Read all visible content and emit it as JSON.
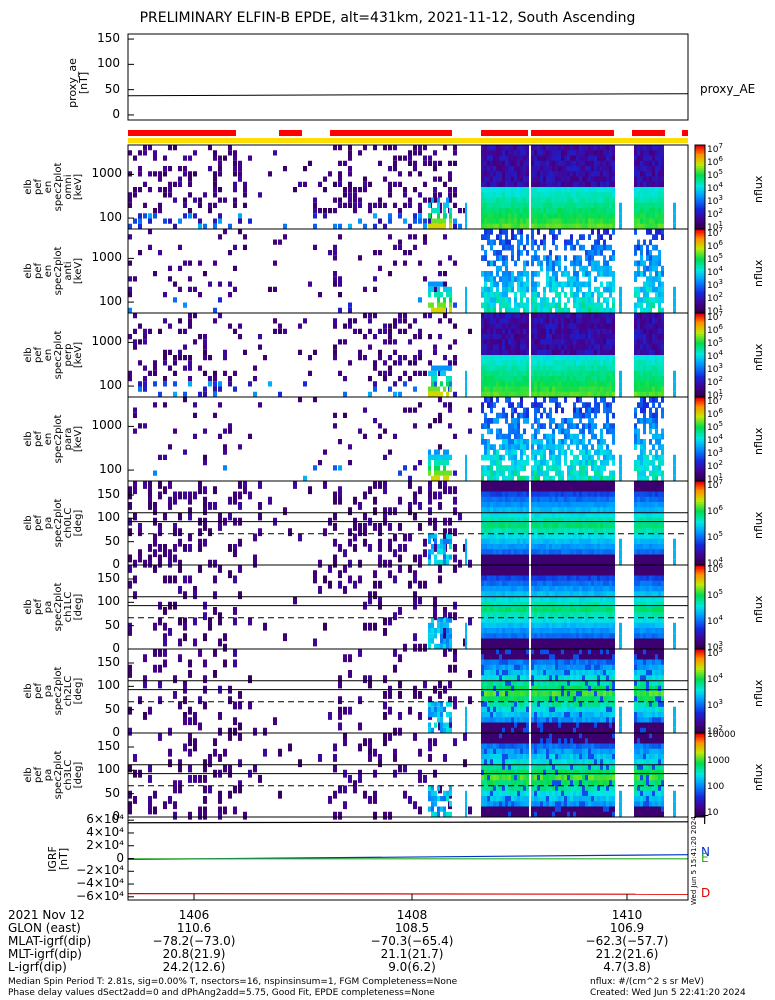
{
  "title": "PRELIMINARY ELFIN-B EPDE, alt=431km, 2021-11-12, South Ascending",
  "chart_data": [
    {
      "type": "line",
      "name": "proxy_ae",
      "ylabel": [
        "proxy_ae",
        "[nT]"
      ],
      "yticks": [
        "150",
        "100",
        "50",
        "0"
      ],
      "ylim": [
        -10,
        160
      ],
      "series": [
        {
          "name": "proxy_AE",
          "x": [
            0,
            1
          ],
          "y": [
            38,
            42
          ],
          "color": "#000000"
        }
      ]
    },
    {
      "type": "heatmap",
      "ylabel": [
        "elb",
        "pef",
        "en",
        "spec2plot",
        "omni",
        "[keV]"
      ],
      "yticks": [
        "1000",
        "100"
      ],
      "cb_label": "nflux",
      "cb_ticks": [
        "10",
        "10",
        "10",
        "10",
        "10",
        "10",
        "10"
      ],
      "cb_exps": [
        "7",
        "6",
        "5",
        "4",
        "3",
        "2",
        "1"
      ]
    },
    {
      "type": "heatmap",
      "ylabel": [
        "elb",
        "pef",
        "en",
        "spec2plot",
        "anti",
        "[keV]"
      ],
      "yticks": [
        "1000",
        "100"
      ],
      "cb_label": "nflux",
      "cb_ticks": [
        "10",
        "10",
        "10",
        "10",
        "10",
        "10",
        "10"
      ],
      "cb_exps": [
        "7",
        "6",
        "5",
        "4",
        "3",
        "2",
        "1"
      ]
    },
    {
      "type": "heatmap",
      "ylabel": [
        "elb",
        "pef",
        "en",
        "spec2plot",
        "perp",
        "[keV]"
      ],
      "yticks": [
        "1000",
        "100"
      ],
      "cb_label": "nflux",
      "cb_ticks": [
        "10",
        "10",
        "10",
        "10",
        "10",
        "10",
        "10"
      ],
      "cb_exps": [
        "7",
        "6",
        "5",
        "4",
        "3",
        "2",
        "1"
      ]
    },
    {
      "type": "heatmap",
      "ylabel": [
        "elb",
        "pef",
        "en",
        "spec2plot",
        "para",
        "[keV]"
      ],
      "yticks": [
        "1000",
        "100"
      ],
      "cb_label": "nflux",
      "cb_ticks": [
        "10",
        "10",
        "10",
        "10",
        "10",
        "10",
        "10"
      ],
      "cb_exps": [
        "7",
        "6",
        "5",
        "4",
        "3",
        "2",
        "1"
      ]
    },
    {
      "type": "heatmap",
      "ylabel": [
        "elb",
        "pef",
        "pa",
        "spec2plot",
        "ch0LC",
        "[deg]"
      ],
      "yticks": [
        "150",
        "100",
        "50",
        "0"
      ],
      "cb_label": "nflux",
      "cb_ticks": [
        "10",
        "10",
        "10",
        "10"
      ],
      "cb_exps": [
        "7",
        "6",
        "5",
        "4"
      ]
    },
    {
      "type": "heatmap",
      "ylabel": [
        "elb",
        "pef",
        "pa",
        "spec2plot",
        "ch1LC",
        "[deg]"
      ],
      "yticks": [
        "150",
        "100",
        "50",
        "0"
      ],
      "cb_label": "nflux",
      "cb_ticks": [
        "10",
        "10",
        "10",
        "10"
      ],
      "cb_exps": [
        "6",
        "5",
        "4",
        "3"
      ]
    },
    {
      "type": "heatmap",
      "ylabel": [
        "elb",
        "pef",
        "pa",
        "spec2plot",
        "ch2LC",
        "[deg]"
      ],
      "yticks": [
        "150",
        "100",
        "50",
        "0"
      ],
      "cb_label": "nflux",
      "cb_ticks": [
        "10",
        "10",
        "10",
        "10"
      ],
      "cb_exps": [
        "5",
        "4",
        "3",
        "2"
      ]
    },
    {
      "type": "heatmap",
      "ylabel": [
        "elb",
        "pef",
        "pa",
        "spec2plot",
        "ch3LC",
        "[deg]"
      ],
      "yticks": [
        "150",
        "100",
        "50",
        "0"
      ],
      "cb_label": "nflux",
      "cb_ticks": [
        "10000",
        "1000",
        "100",
        "10"
      ],
      "cb_exps": [
        "",
        "",
        "",
        ""
      ]
    },
    {
      "type": "line",
      "ylabel": [
        "IGRF",
        "[nT]"
      ],
      "yticks": [
        "6×10⁴",
        "4×10⁴",
        "2×10⁴",
        "0",
        "−2×10⁴",
        "−4×10⁴",
        "−6×10⁴"
      ],
      "ylim": [
        -65000,
        65000
      ],
      "series": [
        {
          "name": "T",
          "x": [
            0,
            1
          ],
          "y": [
            56000,
            57500
          ],
          "color": "#000000"
        },
        {
          "name": "N",
          "x": [
            0,
            1
          ],
          "y": [
            -1500,
            6000
          ],
          "color": "#0033cc"
        },
        {
          "name": "E",
          "x": [
            0,
            1
          ],
          "y": [
            -500,
            -500
          ],
          "color": "#22aa22"
        },
        {
          "name": "D",
          "x": [
            0,
            1
          ],
          "y": [
            -55000,
            -56000
          ],
          "color": "#dd0000"
        }
      ]
    }
  ],
  "xaxis": {
    "row_labels": [
      "2021 Nov 12",
      "GLON (east)",
      "MLAT-igrf(dip)",
      "MLT-igrf(dip)",
      "L-igrf(dip)"
    ],
    "ticks": [
      {
        "hhmm": "1406",
        "glon": "110.6",
        "mlat": "−78.2(−73.0)",
        "mlt": "20.8(21.9)",
        "l": "24.2(12.6)"
      },
      {
        "hhmm": "1408",
        "glon": "108.5",
        "mlat": "−70.3(−65.4)",
        "mlt": "21.1(21.7)",
        "l": "9.0(6.2)"
      },
      {
        "hhmm": "1410",
        "glon": "106.9",
        "mlat": "−62.3(−57.7)",
        "mlt": "21.2(21.6)",
        "l": "4.7(3.8)"
      }
    ]
  },
  "legend_proxy": "proxy_AE",
  "igrf_labels": [
    "T",
    "N",
    "E",
    "D"
  ],
  "side_stamp": "Wed Jun  5 15:41:20 2024",
  "footer": {
    "line1": "Median Spin Period T: 2.81s, sig=0.00% T, nsectors=16, nspinsinsum=1, FGM Completeness=None",
    "line2": "Phase delay values dSect2add=0 and dPhAng2add=5.75, Good Fit, EPDE completeness=None",
    "units": "nflux: #/(cm^2 s sr MeV)",
    "created": "Created: Wed Jun  5 22:41:20 2024"
  },
  "colors": {
    "red_bar": "#ff0000",
    "yellow_bar": "#ffdd00"
  }
}
